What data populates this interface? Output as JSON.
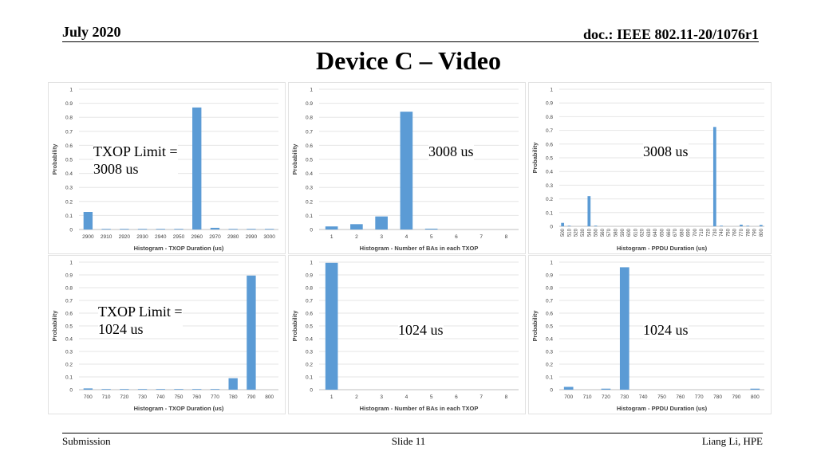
{
  "header": {
    "date": "July 2020",
    "doc": "doc.: IEEE 802.11-20/1076r1"
  },
  "title": "Device C – Video",
  "footer": {
    "left": "Submission",
    "center": "Slide 11",
    "right": "Liang Li, HPE"
  },
  "chart_data": [
    {
      "type": "bar",
      "title": "",
      "xlabel": "Histogram - TXOP Duration (us)",
      "ylabel": "Probability",
      "ylim": [
        0,
        1
      ],
      "yticks": [
        "0",
        "0.1",
        "0.2",
        "0.3",
        "0.4",
        "0.5",
        "0.6",
        "0.7",
        "0.8",
        "0.9",
        "1"
      ],
      "categories": [
        "2900",
        "2910",
        "2920",
        "2930",
        "2940",
        "2950",
        "2960",
        "2970",
        "2980",
        "2990",
        "3000"
      ],
      "values": [
        0.125,
        0.003,
        0.002,
        0.002,
        0.002,
        0.003,
        0.87,
        0.012,
        0.002,
        0.002,
        0.002
      ],
      "annotation": [
        "TXOP Limit =",
        "3008 us"
      ],
      "grid": true,
      "color": "#5b9bd5"
    },
    {
      "type": "bar",
      "title": "",
      "xlabel": "Histogram - Number of BAs in each TXOP",
      "ylabel": "Probability",
      "ylim": [
        0,
        1
      ],
      "yticks": [
        "0",
        "0.1",
        "0.2",
        "0.3",
        "0.4",
        "0.5",
        "0.6",
        "0.7",
        "0.8",
        "0.9",
        "1"
      ],
      "categories": [
        "1",
        "2",
        "3",
        "4",
        "5",
        "6",
        "7",
        "8"
      ],
      "values": [
        0.022,
        0.038,
        0.093,
        0.84,
        0.006,
        0.0,
        0.0,
        0.0
      ],
      "annotation": [
        "3008 us"
      ],
      "grid": true,
      "color": "#5b9bd5"
    },
    {
      "type": "bar",
      "title": "",
      "xlabel": "Histogram - PPDU Duration (us)",
      "ylabel": "Probability",
      "ylim": [
        0,
        1
      ],
      "yticks": [
        "0",
        "0.1",
        "0.2",
        "0.3",
        "0.4",
        "0.5",
        "0.6",
        "0.7",
        "0.8",
        "0.9",
        "1"
      ],
      "categories": [
        "500",
        "510",
        "520",
        "530",
        "540",
        "550",
        "560",
        "570",
        "580",
        "590",
        "600",
        "610",
        "620",
        "630",
        "640",
        "650",
        "660",
        "670",
        "680",
        "690",
        "700",
        "710",
        "720",
        "730",
        "740",
        "750",
        "760",
        "770",
        "780",
        "790",
        "800"
      ],
      "values": [
        0.025,
        0.003,
        0.0,
        0.0,
        0.22,
        0.005,
        0.0,
        0.0,
        0.0,
        0.0,
        0.0,
        0.0,
        0.0,
        0.0,
        0.0,
        0.0,
        0.0,
        0.0,
        0.0,
        0.0,
        0.0,
        0.0,
        0.0,
        0.725,
        0.003,
        0.0,
        0.0,
        0.012,
        0.003,
        0.0,
        0.01
      ],
      "xtick_rotate": true,
      "annotation": [
        "3008 us"
      ],
      "grid": true,
      "color": "#5b9bd5"
    },
    {
      "type": "bar",
      "title": "",
      "xlabel": "Histogram - TXOP Duration (us)",
      "ylabel": "Probability",
      "ylim": [
        0,
        1
      ],
      "yticks": [
        "0",
        "0.1",
        "0.2",
        "0.3",
        "0.4",
        "0.5",
        "0.6",
        "0.7",
        "0.8",
        "0.9",
        "1"
      ],
      "categories": [
        "700",
        "710",
        "720",
        "730",
        "740",
        "750",
        "760",
        "770",
        "780",
        "790",
        "800"
      ],
      "values": [
        0.01,
        0.003,
        0.003,
        0.003,
        0.003,
        0.003,
        0.003,
        0.003,
        0.09,
        0.895,
        0.0
      ],
      "annotation": [
        "TXOP Limit =",
        "1024 us"
      ],
      "grid": true,
      "color": "#5b9bd5"
    },
    {
      "type": "bar",
      "title": "",
      "xlabel": "Histogram - Number of BAs in each TXOP",
      "ylabel": "Probability",
      "ylim": [
        0,
        1
      ],
      "yticks": [
        "0",
        "0.1",
        "0.2",
        "0.3",
        "0.4",
        "0.5",
        "0.6",
        "0.7",
        "0.8",
        "0.9",
        "1"
      ],
      "categories": [
        "1",
        "2",
        "3",
        "4",
        "5",
        "6",
        "7",
        "8"
      ],
      "values": [
        0.995,
        0.0,
        0.0,
        0.0,
        0.0,
        0.0,
        0.0,
        0.0
      ],
      "annotation": [
        "1024 us"
      ],
      "grid": true,
      "color": "#5b9bd5"
    },
    {
      "type": "bar",
      "title": "",
      "xlabel": "Histogram - PPDU Duration (us)",
      "ylabel": "Probability",
      "ylim": [
        0,
        1
      ],
      "yticks": [
        "0",
        "0.1",
        "0.2",
        "0.3",
        "0.4",
        "0.5",
        "0.6",
        "0.7",
        "0.8",
        "0.9",
        "1"
      ],
      "categories": [
        "700",
        "710",
        "720",
        "730",
        "740",
        "750",
        "760",
        "770",
        "780",
        "790",
        "800"
      ],
      "values": [
        0.022,
        0.0,
        0.008,
        0.96,
        0.0,
        0.0,
        0.0,
        0.0,
        0.0,
        0.0,
        0.008
      ],
      "annotation": [
        "1024 us"
      ],
      "grid": true,
      "color": "#5b9bd5"
    }
  ]
}
